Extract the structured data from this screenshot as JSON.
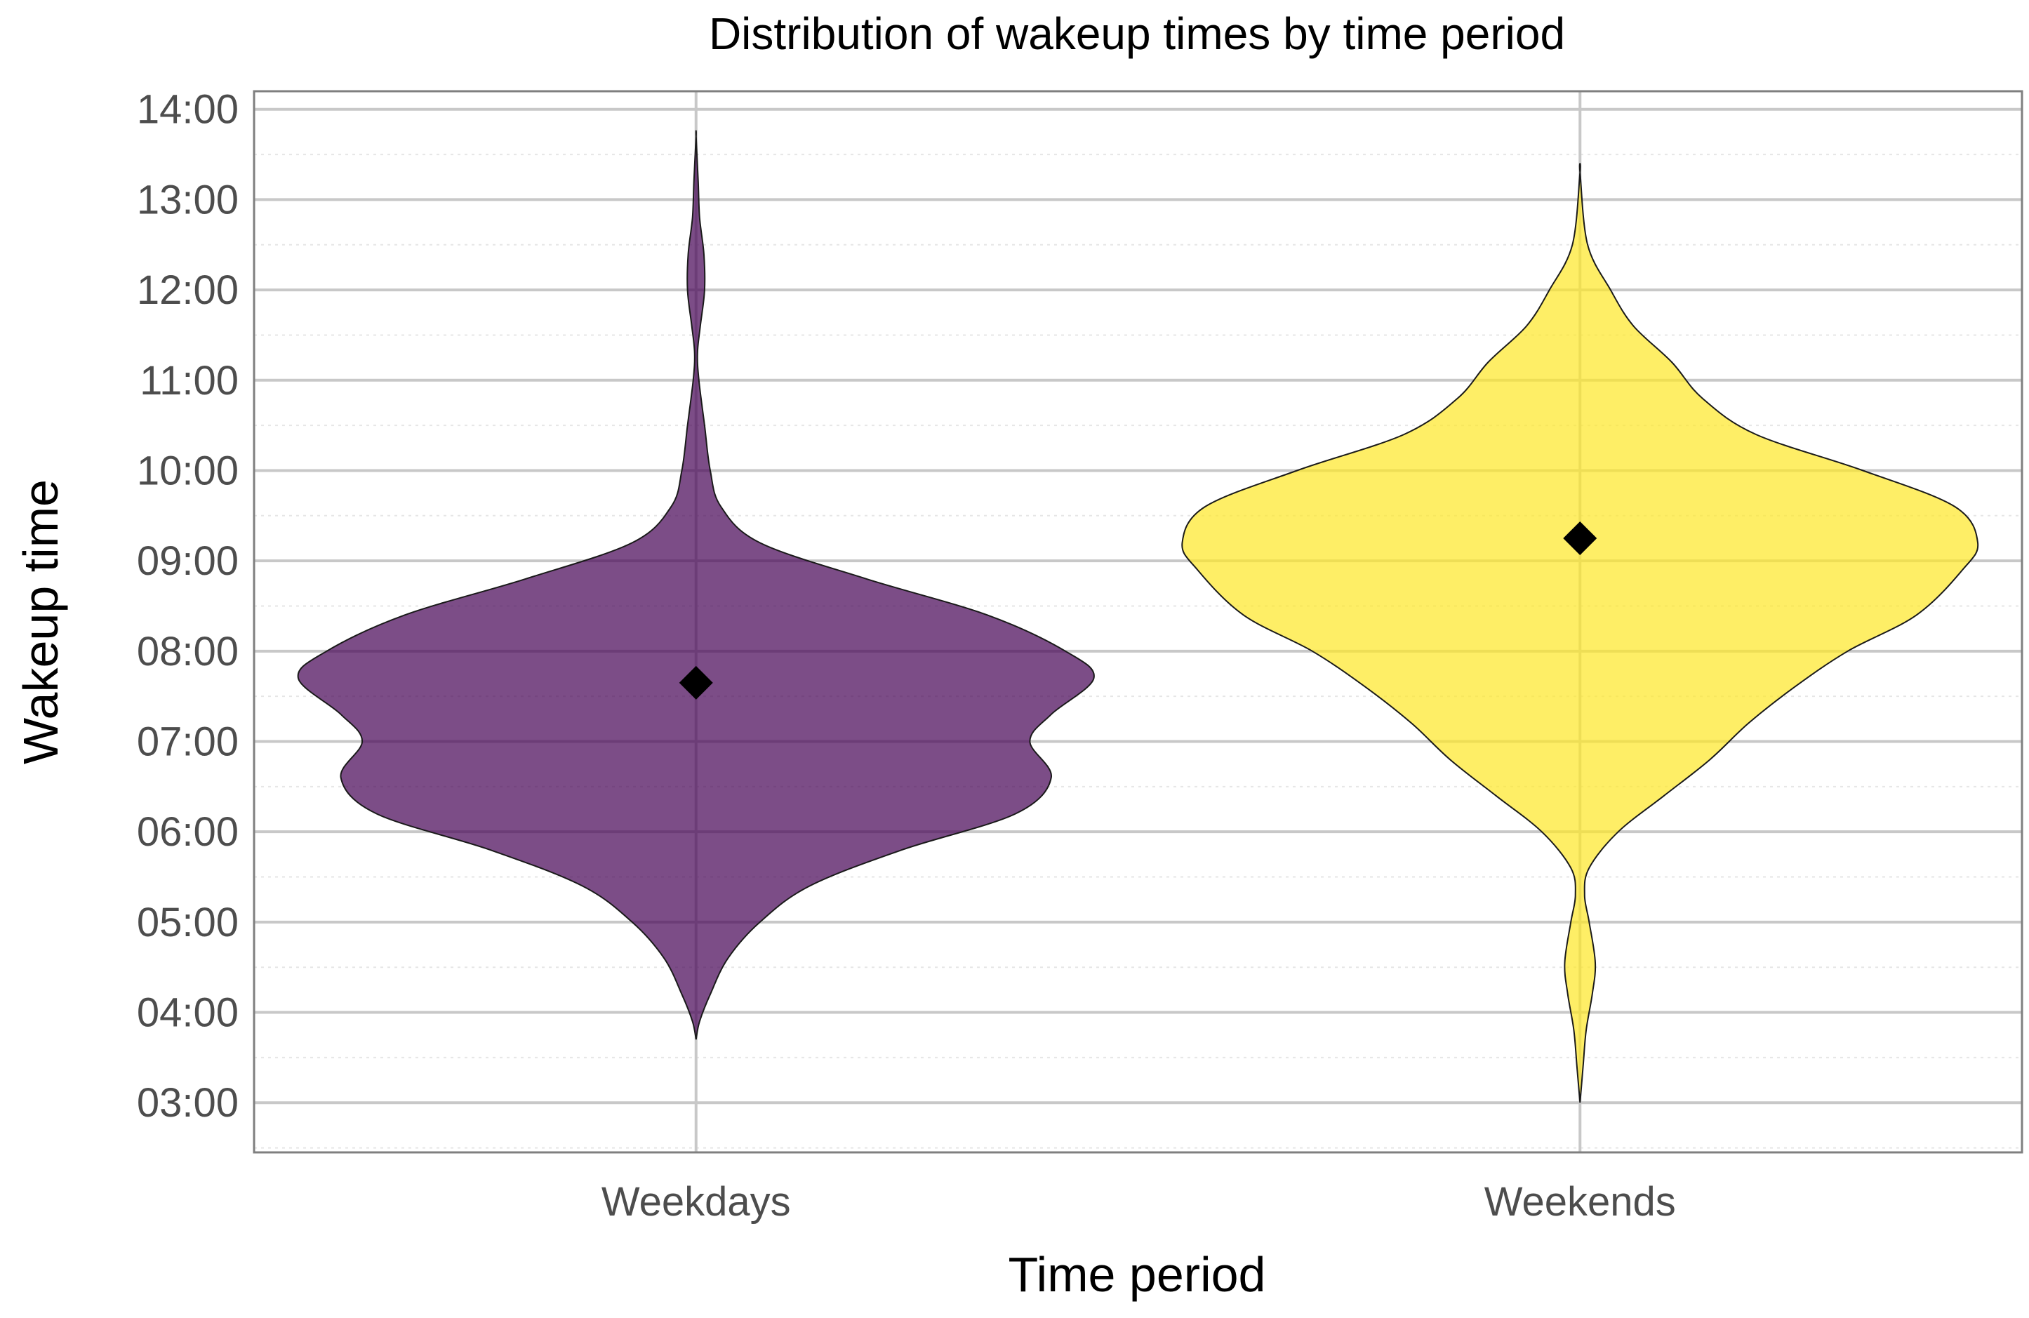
{
  "chart_data": {
    "type": "violin",
    "title": "Distribution of wakeup times by time period",
    "xlabel": "Time period",
    "ylabel": "Wakeup time",
    "categories": [
      "Weekdays",
      "Weekends"
    ],
    "ylim": [
      2.45,
      14.2
    ],
    "yticks": [
      {
        "value": 3,
        "label": "03:00"
      },
      {
        "value": 4,
        "label": "04:00"
      },
      {
        "value": 5,
        "label": "05:00"
      },
      {
        "value": 6,
        "label": "06:00"
      },
      {
        "value": 7,
        "label": "07:00"
      },
      {
        "value": 8,
        "label": "08:00"
      },
      {
        "value": 9,
        "label": "09:00"
      },
      {
        "value": 10,
        "label": "10:00"
      },
      {
        "value": 11,
        "label": "11:00"
      },
      {
        "value": 12,
        "label": "12:00"
      },
      {
        "value": 13,
        "label": "13:00"
      },
      {
        "value": 14,
        "label": "14:00"
      }
    ],
    "grid": true,
    "legend": "none",
    "series": [
      {
        "category": "Weekdays",
        "color": "#440154",
        "opacity": 0.7,
        "mean": 7.65,
        "density_halfwidth": [
          [
            3.7,
            0.0
          ],
          [
            3.9,
            0.005
          ],
          [
            4.2,
            0.02
          ],
          [
            4.6,
            0.045
          ],
          [
            5.0,
            0.09
          ],
          [
            5.4,
            0.16
          ],
          [
            5.8,
            0.29
          ],
          [
            6.2,
            0.45
          ],
          [
            6.6,
            0.5
          ],
          [
            7.0,
            0.47
          ],
          [
            7.3,
            0.5
          ],
          [
            7.7,
            0.56
          ],
          [
            8.0,
            0.52
          ],
          [
            8.4,
            0.41
          ],
          [
            8.8,
            0.24
          ],
          [
            9.2,
            0.09
          ],
          [
            9.6,
            0.035
          ],
          [
            10.0,
            0.02
          ],
          [
            10.5,
            0.012
          ],
          [
            11.0,
            0.004
          ],
          [
            11.3,
            0.002
          ],
          [
            11.6,
            0.006
          ],
          [
            12.0,
            0.012
          ],
          [
            12.4,
            0.011
          ],
          [
            12.8,
            0.005
          ],
          [
            13.2,
            0.003
          ],
          [
            13.7,
            0.0
          ]
        ]
      },
      {
        "category": "Weekends",
        "color": "#fde725",
        "opacity": 0.7,
        "mean": 9.25,
        "density_halfwidth": [
          [
            3.0,
            0.0
          ],
          [
            3.4,
            0.004
          ],
          [
            3.8,
            0.008
          ],
          [
            4.2,
            0.016
          ],
          [
            4.55,
            0.02
          ],
          [
            5.0,
            0.012
          ],
          [
            5.3,
            0.006
          ],
          [
            5.6,
            0.012
          ],
          [
            6.0,
            0.05
          ],
          [
            6.4,
            0.11
          ],
          [
            6.8,
            0.17
          ],
          [
            7.2,
            0.22
          ],
          [
            7.6,
            0.28
          ],
          [
            8.0,
            0.35
          ],
          [
            8.4,
            0.44
          ],
          [
            8.9,
            0.5
          ],
          [
            9.2,
            0.52
          ],
          [
            9.6,
            0.49
          ],
          [
            10.0,
            0.37
          ],
          [
            10.4,
            0.23
          ],
          [
            10.8,
            0.16
          ],
          [
            11.2,
            0.12
          ],
          [
            11.6,
            0.07
          ],
          [
            12.0,
            0.04
          ],
          [
            12.5,
            0.01
          ],
          [
            13.3,
            0.0
          ]
        ]
      }
    ]
  }
}
